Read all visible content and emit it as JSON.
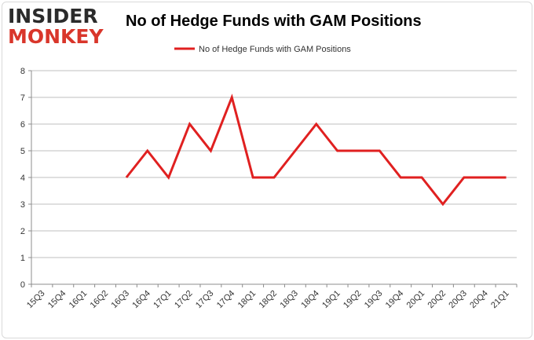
{
  "logo": {
    "line1": "INSIDER",
    "line2": "MONKEY"
  },
  "chart_data": {
    "type": "line",
    "title": "No of Hedge Funds with GAM Positions",
    "xlabel": "",
    "ylabel": "",
    "x": [
      "15Q3",
      "15Q4",
      "16Q1",
      "16Q2",
      "16Q3",
      "16Q4",
      "17Q1",
      "17Q2",
      "17Q3",
      "17Q4",
      "18Q1",
      "18Q2",
      "18Q3",
      "18Q4",
      "19Q1",
      "19Q2",
      "19Q3",
      "19Q4",
      "20Q1",
      "20Q2",
      "20Q3",
      "20Q4",
      "21Q1"
    ],
    "series": [
      {
        "name": "No of Hedge Funds with GAM Positions",
        "color": "#e02020",
        "values": [
          null,
          null,
          null,
          null,
          4,
          5,
          4,
          6,
          5,
          7,
          4,
          4,
          5,
          6,
          5,
          5,
          5,
          4,
          4,
          3,
          4,
          4,
          4
        ]
      }
    ],
    "ylim": [
      0,
      8
    ],
    "yticks": [
      0,
      1,
      2,
      3,
      4,
      5,
      6,
      7,
      8
    ],
    "grid": true,
    "legend": "top-center"
  }
}
